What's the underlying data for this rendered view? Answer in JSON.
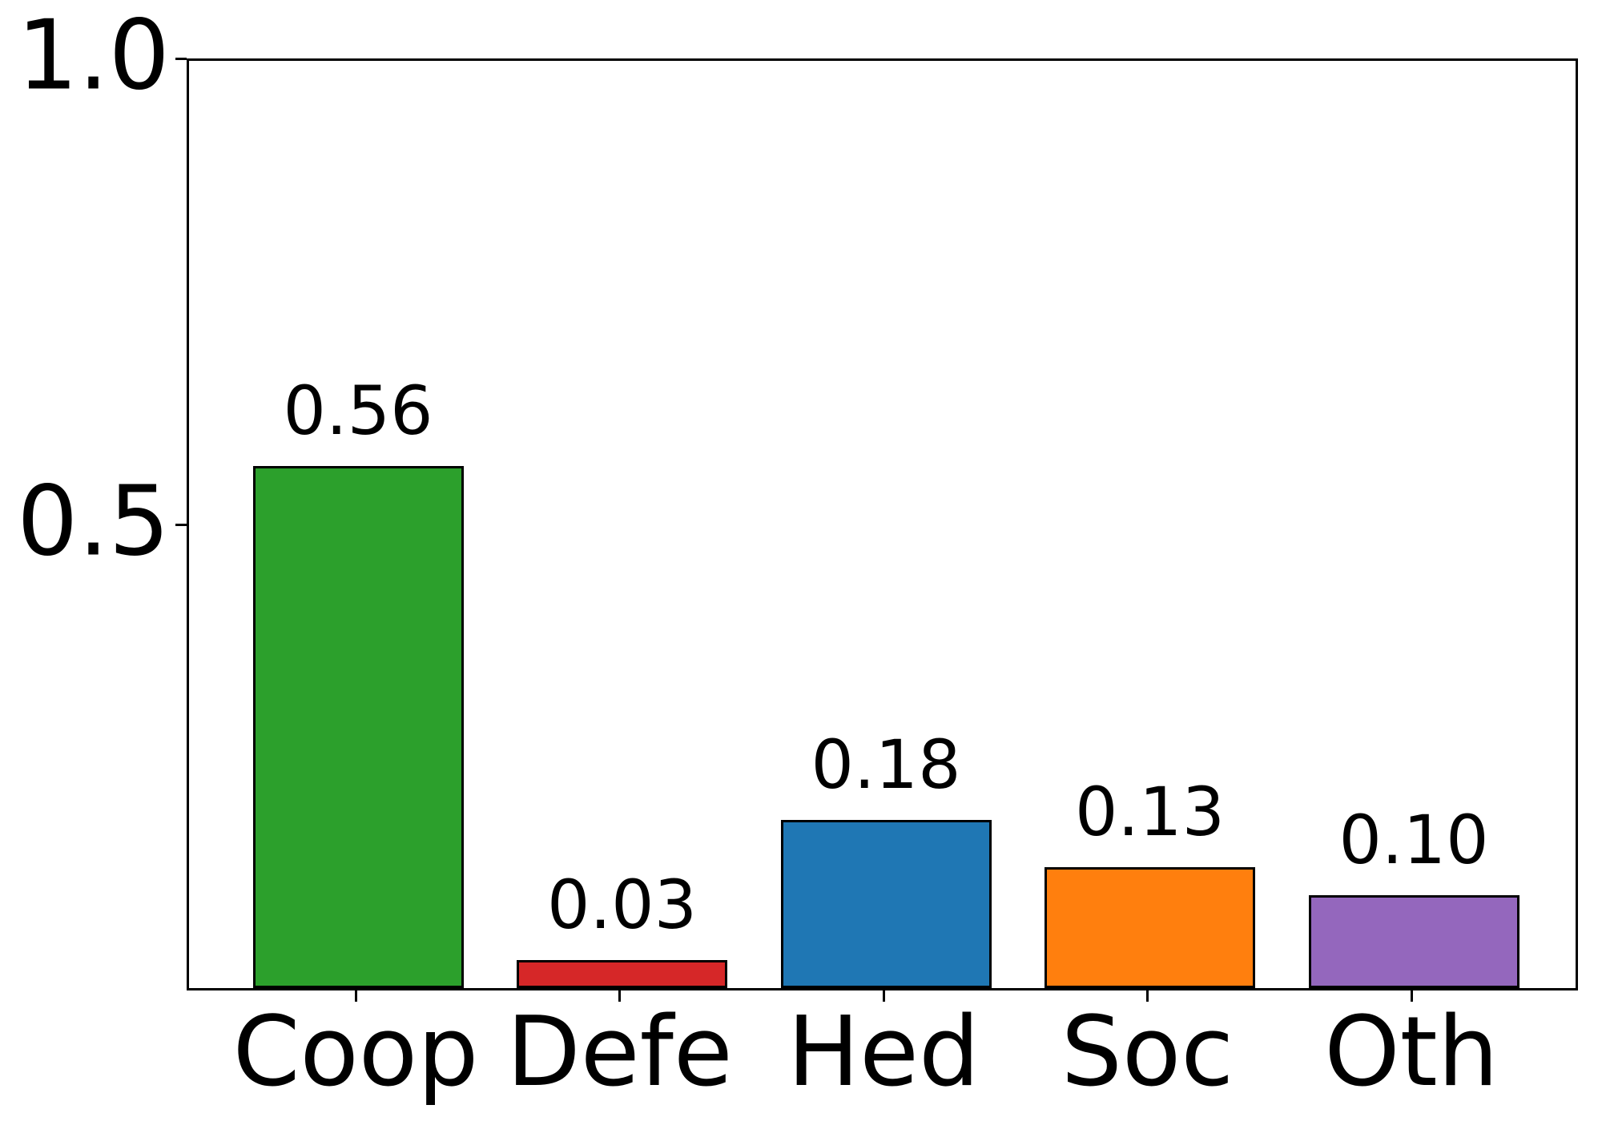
{
  "figure": {
    "background_color": "#ffffff",
    "text_color": "#000000"
  },
  "chart_data": {
    "type": "bar",
    "title": "",
    "xlabel": "",
    "ylabel": "",
    "categories": [
      "Coop",
      "Defe",
      "Hed",
      "Soc",
      "Oth"
    ],
    "values": [
      0.56,
      0.03,
      0.18,
      0.13,
      0.1
    ],
    "bar_labels": [
      "0.56",
      "0.03",
      "0.18",
      "0.13",
      "0.10"
    ],
    "bar_colors": [
      "#2ca02c",
      "#d62728",
      "#1f77b4",
      "#ff7f0e",
      "#9467bd"
    ],
    "bar_edge_color": "#000000",
    "spine_color": "#000000",
    "ylim": [
      0,
      1.0
    ],
    "yticks": [
      {
        "value": 1.0,
        "label": "1.0"
      },
      {
        "value": 0.5,
        "label": "0.5"
      }
    ],
    "grid": false,
    "legend_position": "none"
  }
}
